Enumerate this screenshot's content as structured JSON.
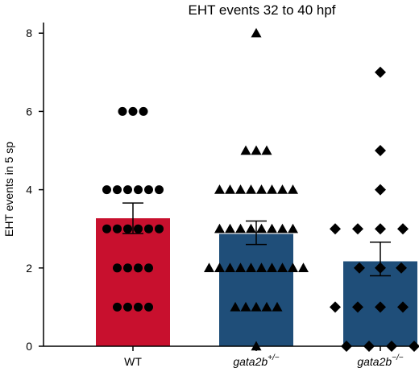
{
  "chart_data": {
    "type": "bar",
    "title": "EHT events 32 to 40 hpf",
    "ylabel": "EHT events in 5 sp",
    "xlabel": "",
    "ylim": [
      0,
      8.3
    ],
    "yticks": [
      0,
      2,
      4,
      6,
      8
    ],
    "grid": false,
    "categories": [
      {
        "name": "WT",
        "label": "WT",
        "superscript": ""
      },
      {
        "name": "gata2b+/-",
        "label": "gata2b",
        "superscript": "+/−"
      },
      {
        "name": "gata2b-/-",
        "label": "gata2b",
        "superscript": "−/−"
      }
    ],
    "values": [
      3.27,
      2.87,
      2.17
    ],
    "errors": [
      {
        "low": 2.88,
        "high": 3.66
      },
      {
        "low": 2.6,
        "high": 3.2
      },
      {
        "low": 1.8,
        "high": 2.66
      }
    ],
    "bar_colors": [
      "#c8102e",
      "#1f4e79",
      "#1f4e79"
    ],
    "marker_shapes": [
      "circle",
      "triangle",
      "diamond"
    ],
    "points": [
      [
        6,
        6,
        6,
        4,
        4,
        4,
        4,
        4,
        4,
        3,
        3,
        3,
        3,
        3,
        3,
        2,
        2,
        2,
        2,
        1,
        1,
        1,
        1
      ],
      [
        8,
        5,
        5,
        5,
        4,
        4,
        4,
        4,
        4,
        4,
        4,
        4,
        3,
        3,
        3,
        3,
        3,
        3,
        3,
        3,
        2,
        2,
        2,
        2,
        2,
        2,
        2,
        2,
        2,
        2,
        1,
        1,
        1,
        1,
        1,
        0
      ],
      [
        7,
        5,
        4,
        3,
        3,
        3,
        3,
        3,
        2,
        2,
        2,
        1,
        1,
        1,
        1,
        1,
        0,
        0,
        0,
        0
      ]
    ]
  }
}
